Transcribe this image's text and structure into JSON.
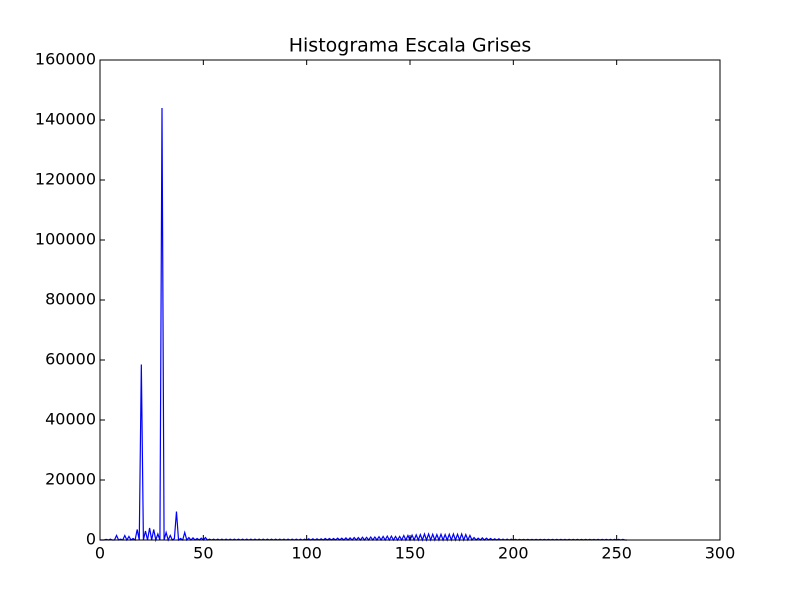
{
  "chart_data": {
    "type": "line",
    "title": "Histograma Escala Grises",
    "x": [
      0,
      1,
      2,
      3,
      4,
      5,
      6,
      7,
      8,
      9,
      10,
      11,
      12,
      13,
      14,
      15,
      16,
      17,
      18,
      19,
      20,
      21,
      22,
      23,
      24,
      25,
      26,
      27,
      28,
      29,
      30,
      31,
      32,
      33,
      34,
      35,
      36,
      37,
      38,
      39,
      40,
      41,
      42,
      43,
      44,
      45,
      46,
      47,
      48,
      49,
      50,
      51,
      52,
      53,
      54,
      55,
      56,
      57,
      58,
      59,
      60,
      61,
      62,
      63,
      64,
      65,
      66,
      67,
      68,
      69,
      70,
      71,
      72,
      73,
      74,
      75,
      76,
      77,
      78,
      79,
      80,
      81,
      82,
      83,
      84,
      85,
      86,
      87,
      88,
      89,
      90,
      91,
      92,
      93,
      94,
      95,
      96,
      97,
      98,
      99,
      100,
      101,
      102,
      103,
      104,
      105,
      106,
      107,
      108,
      109,
      110,
      111,
      112,
      113,
      114,
      115,
      116,
      117,
      118,
      119,
      120,
      121,
      122,
      123,
      124,
      125,
      126,
      127,
      128,
      129,
      130,
      131,
      132,
      133,
      134,
      135,
      136,
      137,
      138,
      139,
      140,
      141,
      142,
      143,
      144,
      145,
      146,
      147,
      148,
      149,
      150,
      151,
      152,
      153,
      154,
      155,
      156,
      157,
      158,
      159,
      160,
      161,
      162,
      163,
      164,
      165,
      166,
      167,
      168,
      169,
      170,
      171,
      172,
      173,
      174,
      175,
      176,
      177,
      178,
      179,
      180,
      181,
      182,
      183,
      184,
      185,
      186,
      187,
      188,
      189,
      190,
      191,
      192,
      193,
      194,
      195,
      196,
      197,
      198,
      199,
      200,
      201,
      202,
      203,
      204,
      205,
      206,
      207,
      208,
      209,
      210,
      211,
      212,
      213,
      214,
      215,
      216,
      217,
      218,
      219,
      220,
      221,
      222,
      223,
      224,
      225,
      226,
      227,
      228,
      229,
      230,
      231,
      232,
      233,
      234,
      235,
      236,
      237,
      238,
      239,
      240,
      241,
      242,
      243,
      244,
      245,
      246,
      247,
      248,
      249,
      250,
      251,
      252,
      253,
      254,
      255
    ],
    "series": [
      {
        "color": "#0000ff",
        "values": [
          0,
          0,
          0,
          200,
          0,
          300,
          0,
          0,
          1500,
          0,
          300,
          0,
          1500,
          0,
          1200,
          0,
          500,
          0,
          3500,
          0,
          58500,
          0,
          3000,
          0,
          4000,
          0,
          3500,
          0,
          2000,
          0,
          144000,
          0,
          2500,
          0,
          1500,
          0,
          500,
          9500,
          0,
          500,
          0,
          2500,
          0,
          800,
          0,
          700,
          0,
          500,
          0,
          600,
          0,
          800,
          0,
          300,
          0,
          300,
          0,
          300,
          0,
          300,
          0,
          300,
          0,
          300,
          0,
          300,
          0,
          300,
          0,
          300,
          0,
          300,
          0,
          300,
          0,
          300,
          0,
          300,
          0,
          300,
          0,
          300,
          0,
          300,
          0,
          300,
          0,
          300,
          0,
          300,
          0,
          300,
          0,
          300,
          0,
          300,
          0,
          300,
          0,
          300,
          0,
          400,
          0,
          400,
          0,
          400,
          0,
          400,
          0,
          500,
          0,
          500,
          0,
          500,
          0,
          600,
          0,
          600,
          0,
          700,
          0,
          700,
          0,
          800,
          0,
          800,
          0,
          900,
          0,
          900,
          0,
          1000,
          0,
          1000,
          0,
          1100,
          0,
          1200,
          0,
          1300,
          0,
          1300,
          0,
          1200,
          0,
          1200,
          0,
          1500,
          0,
          1500,
          0,
          1600,
          0,
          1700,
          0,
          1800,
          0,
          2000,
          0,
          2000,
          0,
          1900,
          0,
          1800,
          0,
          1900,
          0,
          1800,
          0,
          1900,
          0,
          2000,
          0,
          1900,
          0,
          2000,
          0,
          1800,
          0,
          1500,
          0,
          800,
          0,
          600,
          0,
          700,
          0,
          600,
          0,
          500,
          0,
          400,
          0,
          400,
          0,
          300,
          0,
          300,
          0,
          300,
          0,
          200,
          0,
          200,
          0,
          200,
          0,
          200,
          0,
          200,
          0,
          200,
          0,
          200,
          0,
          200,
          0,
          200,
          0,
          200,
          0,
          200,
          0,
          200,
          0,
          200,
          0,
          200,
          0,
          200,
          0,
          200,
          0,
          200,
          0,
          200,
          0,
          200,
          0,
          200,
          0,
          200,
          0,
          200,
          0,
          200,
          0,
          200,
          0,
          200,
          0,
          200,
          0,
          200,
          0,
          0
        ]
      }
    ],
    "xlim": [
      0,
      300
    ],
    "xticks": [
      0,
      50,
      100,
      150,
      200,
      250,
      300
    ],
    "ylim": [
      0,
      160000
    ],
    "yticks": [
      0,
      20000,
      40000,
      60000,
      80000,
      100000,
      120000,
      140000,
      160000
    ],
    "grid": false
  }
}
